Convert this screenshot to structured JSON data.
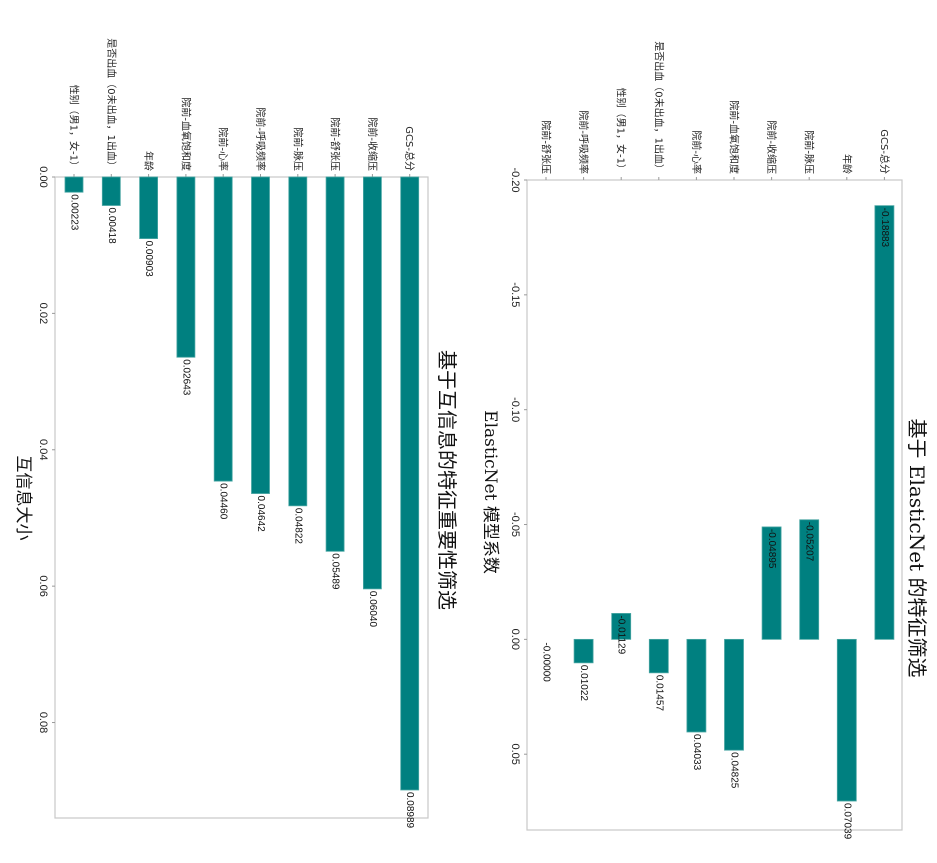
{
  "figure": {
    "orientation": "rotated-90-clockwise",
    "bar_color": "#008080"
  },
  "chart_data": [
    {
      "id": "mutual_info",
      "type": "bar",
      "title": "基于互信息的特征重要性筛选",
      "xlabel": "",
      "ylabel": "互信息大小",
      "ylim": [
        0.0,
        0.094
      ],
      "yticks": [
        0.0,
        0.02,
        0.04,
        0.06,
        0.08
      ],
      "ytick_labels": [
        "0.00",
        "0.02",
        "0.04",
        "0.06",
        "0.08"
      ],
      "categories": [
        "性别（男1，女-1）",
        "是否出血（0未出血，1出血）",
        "年龄",
        "院前-血氧饱和度",
        "院前-心率",
        "院前-呼吸频率",
        "院前-脉压",
        "院前-舒张压",
        "院前-收缩压",
        "GCS-总分"
      ],
      "values": [
        0.00223,
        0.00418,
        0.00903,
        0.02643,
        0.0446,
        0.04642,
        0.04822,
        0.05489,
        0.0604,
        0.08989
      ],
      "value_labels": [
        "0.00223",
        "0.00418",
        "0.00903",
        "0.02643",
        "0.04460",
        "0.04642",
        "0.04822",
        "0.05489",
        "0.06040",
        "0.08989"
      ],
      "grid": false,
      "legend": "none"
    },
    {
      "id": "elasticnet",
      "type": "bar",
      "title": "基于 ElasticNet 的特征筛选",
      "xlabel": "",
      "ylabel": "ElasticNet 模型系数",
      "ylim": [
        -0.2,
        0.083
      ],
      "yticks": [
        -0.2,
        -0.15,
        -0.1,
        -0.05,
        0.0,
        0.05
      ],
      "ytick_labels": [
        "-0.20",
        "-0.15",
        "-0.10",
        "-0.05",
        "0.00",
        "0.05"
      ],
      "categories": [
        "院前-舒张压",
        "院前-呼吸频率",
        "性别（男1，女-1）",
        "是否出血（0未出血，1出血）",
        "院前-心率",
        "院前-血氧饱和度",
        "院前-收缩压",
        "院前-脉压",
        "年龄",
        "GCS-总分"
      ],
      "values": [
        -0.0,
        0.01022,
        -0.01129,
        0.01457,
        0.04033,
        0.04825,
        -0.04895,
        -0.05207,
        0.07039,
        -0.18883
      ],
      "value_labels": [
        "-0.00000",
        "0.01022",
        "-0.01129",
        "0.01457",
        "0.04033",
        "0.04825",
        "-0.04895",
        "-0.05207",
        "0.07039",
        "-0.18883"
      ],
      "grid": false,
      "legend": "none"
    }
  ]
}
